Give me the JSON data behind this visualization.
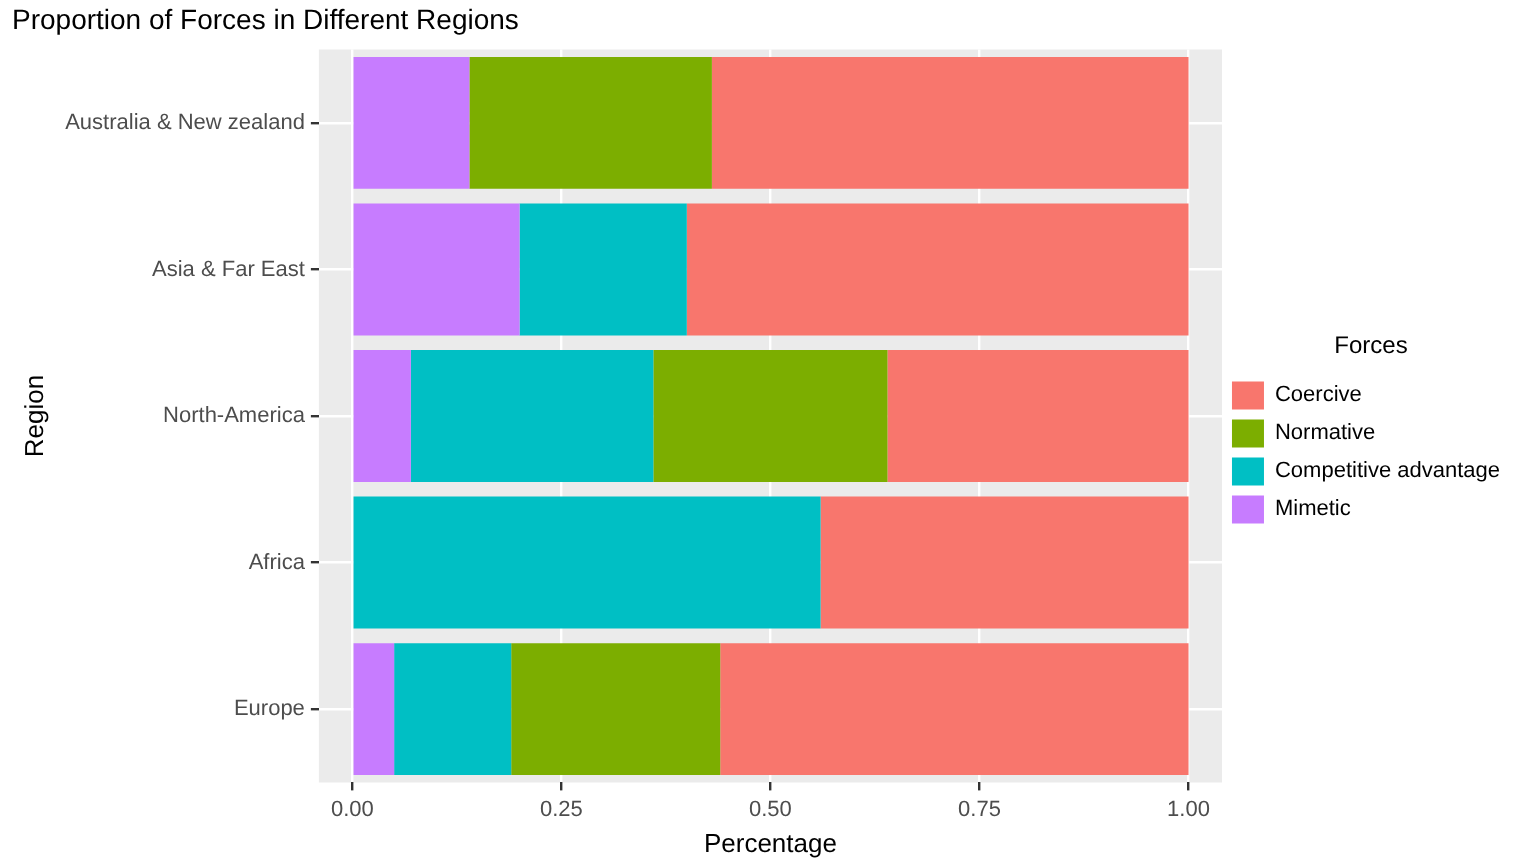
{
  "chart_data": {
    "type": "bar",
    "orientation": "horizontal",
    "stacked": true,
    "title": "Proportion of Forces in Different Regions",
    "xlabel": "Percentage",
    "ylabel": "Region",
    "legend_title": "Forces",
    "categories": [
      "Australia & New zealand",
      "Asia & Far East",
      "North-America",
      "Africa",
      "Europe"
    ],
    "series": [
      {
        "name": "Mimetic",
        "color": "#c77cff",
        "values": [
          0.14,
          0.2,
          0.07,
          0,
          0.05
        ]
      },
      {
        "name": "Competitive advantage",
        "color": "#00bfc4",
        "values": [
          0,
          0.2,
          0.29,
          0.56,
          0.14
        ]
      },
      {
        "name": "Normative",
        "color": "#7cae00",
        "values": [
          0.29,
          0,
          0.28,
          0,
          0.25
        ]
      },
      {
        "name": "Coercive",
        "color": "#f8766d",
        "values": [
          0.57,
          0.6,
          0.36,
          0.44,
          0.56
        ]
      }
    ],
    "xlim": [
      -0.04,
      1.04
    ],
    "xticks": [
      {
        "value": 0,
        "label": "0.00"
      },
      {
        "value": 0.25,
        "label": "0.25"
      },
      {
        "value": 0.5,
        "label": "0.50"
      },
      {
        "value": 0.75,
        "label": "0.75"
      },
      {
        "value": 1,
        "label": "1.00"
      }
    ],
    "grid": true,
    "legend": "right"
  }
}
